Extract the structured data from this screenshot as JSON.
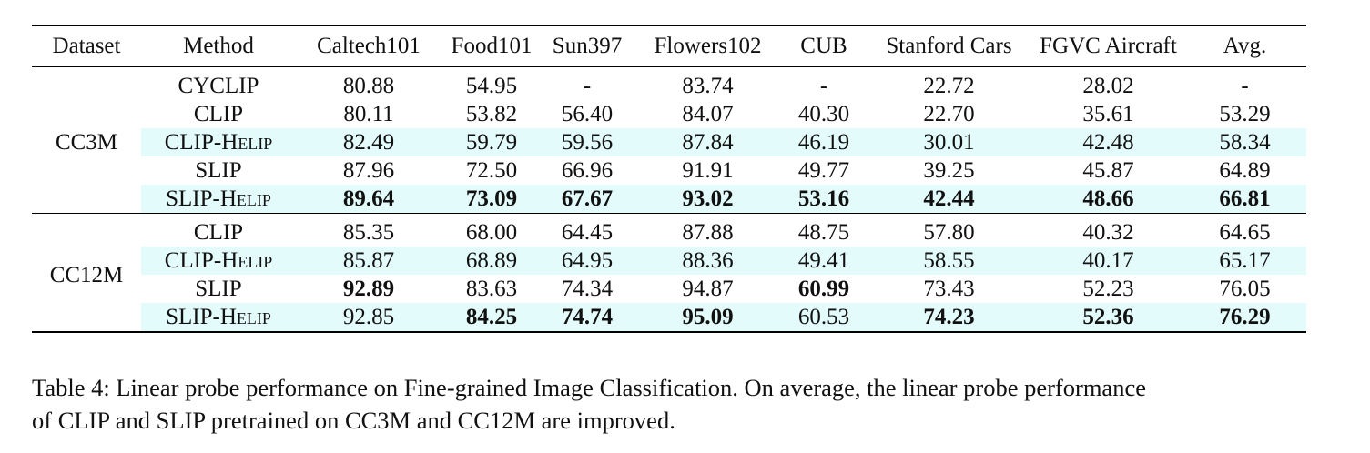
{
  "table": {
    "headers": [
      "Dataset",
      "Method",
      "Caltech101",
      "Food101",
      "Sun397",
      "Flowers102",
      "CUB",
      "Stanford Cars",
      "FGVC Aircraft",
      "Avg."
    ],
    "groups": [
      {
        "dataset": "CC3M",
        "rows": [
          {
            "method": "CYCLIP",
            "method_suffix": "",
            "values": [
              "80.88",
              "54.95",
              "-",
              "83.74",
              "-",
              "22.72",
              "28.02",
              "-"
            ],
            "bold": [
              false,
              false,
              false,
              false,
              false,
              false,
              false,
              false
            ],
            "highlight": false
          },
          {
            "method": "CLIP",
            "method_suffix": "",
            "values": [
              "80.11",
              "53.82",
              "56.40",
              "84.07",
              "40.30",
              "22.70",
              "35.61",
              "53.29"
            ],
            "bold": [
              false,
              false,
              false,
              false,
              false,
              false,
              false,
              false
            ],
            "highlight": false
          },
          {
            "method": "CLIP-H",
            "method_suffix": "elip",
            "values": [
              "82.49",
              "59.79",
              "59.56",
              "87.84",
              "46.19",
              "30.01",
              "42.48",
              "58.34"
            ],
            "bold": [
              false,
              false,
              false,
              false,
              false,
              false,
              false,
              false
            ],
            "highlight": true
          },
          {
            "method": "SLIP",
            "method_suffix": "",
            "values": [
              "87.96",
              "72.50",
              "66.96",
              "91.91",
              "49.77",
              "39.25",
              "45.87",
              "64.89"
            ],
            "bold": [
              false,
              false,
              false,
              false,
              false,
              false,
              false,
              false
            ],
            "highlight": false
          },
          {
            "method": "SLIP-H",
            "method_suffix": "elip",
            "values": [
              "89.64",
              "73.09",
              "67.67",
              "93.02",
              "53.16",
              "42.44",
              "48.66",
              "66.81"
            ],
            "bold": [
              true,
              true,
              true,
              true,
              true,
              true,
              true,
              true
            ],
            "highlight": true
          }
        ]
      },
      {
        "dataset": "CC12M",
        "rows": [
          {
            "method": "CLIP",
            "method_suffix": "",
            "values": [
              "85.35",
              "68.00",
              "64.45",
              "87.88",
              "48.75",
              "57.80",
              "40.32",
              "64.65"
            ],
            "bold": [
              false,
              false,
              false,
              false,
              false,
              false,
              false,
              false
            ],
            "highlight": false
          },
          {
            "method": "CLIP-H",
            "method_suffix": "elip",
            "values": [
              "85.87",
              "68.89",
              "64.95",
              "88.36",
              "49.41",
              "58.55",
              "40.17",
              "65.17"
            ],
            "bold": [
              false,
              false,
              false,
              false,
              false,
              false,
              false,
              false
            ],
            "highlight": true
          },
          {
            "method": "SLIP",
            "method_suffix": "",
            "values": [
              "92.89",
              "83.63",
              "74.34",
              "94.87",
              "60.99",
              "73.43",
              "52.23",
              "76.05"
            ],
            "bold": [
              true,
              false,
              false,
              false,
              true,
              false,
              false,
              false
            ],
            "highlight": false
          },
          {
            "method": "SLIP-H",
            "method_suffix": "elip",
            "values": [
              "92.85",
              "84.25",
              "74.74",
              "95.09",
              "60.53",
              "74.23",
              "52.36",
              "76.29"
            ],
            "bold": [
              false,
              true,
              true,
              true,
              false,
              true,
              true,
              true
            ],
            "highlight": true
          }
        ]
      }
    ],
    "highlight_color": "#e3fbfb"
  },
  "caption": {
    "line1": "Table 4: Linear probe performance on Fine-grained Image Classification. On average, the linear probe performance",
    "line2": "of CLIP and SLIP pretrained on CC3M and CC12M are improved."
  }
}
